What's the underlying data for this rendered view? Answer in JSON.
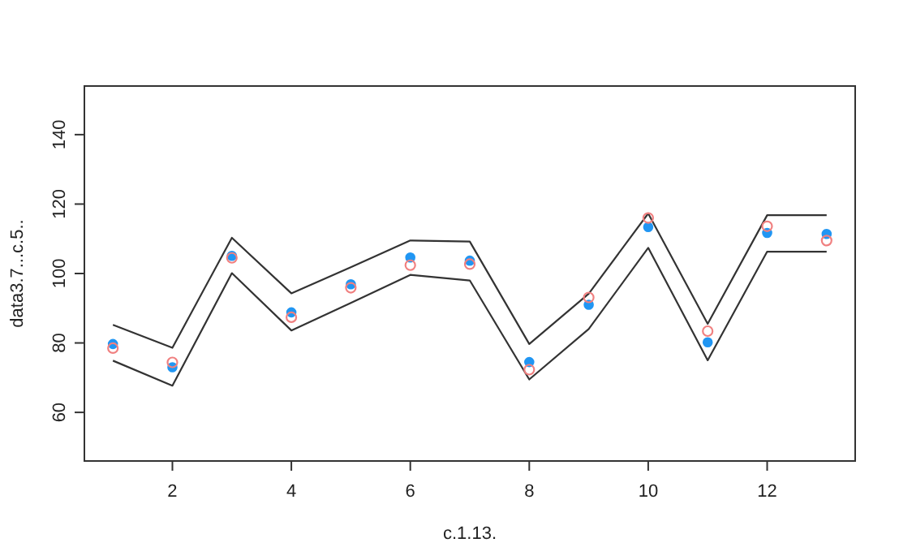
{
  "chart_data": {
    "type": "scatter",
    "xlabel": "c.1.13.",
    "ylabel": "data3.7...c.5..",
    "x": [
      1,
      2,
      3,
      4,
      5,
      6,
      7,
      8,
      9,
      10,
      11,
      12,
      13
    ],
    "xlim": [
      0.52,
      13.48
    ],
    "ylim": [
      46,
      154
    ],
    "xticks": [
      2,
      4,
      6,
      8,
      10,
      12
    ],
    "yticks": [
      60,
      80,
      100,
      120,
      140
    ],
    "grid": false,
    "marker": "circle",
    "series": [
      {
        "type": "line",
        "color": "#333333",
        "marker": "none",
        "line_style": "solid",
        "values": [
          85.2,
          78.6,
          110.3,
          94.3,
          101.8,
          109.5,
          109.2,
          79.7,
          94.2,
          117.3,
          85.5,
          116.8,
          116.8
        ]
      },
      {
        "type": "line",
        "color": "#333333",
        "marker": "none",
        "line_style": "solid",
        "values": [
          74.9,
          67.7,
          100.1,
          83.6,
          91.5,
          99.6,
          98.0,
          69.5,
          84.0,
          107.4,
          75.0,
          106.3,
          106.3
        ]
      },
      {
        "color": "#2196f3",
        "values": [
          79.7,
          73.0,
          105.1,
          88.8,
          96.9,
          104.6,
          103.7,
          74.5,
          91.0,
          113.4,
          80.2,
          111.7,
          111.4
        ]
      },
      {
        "color": "#f08080",
        "values": [
          78.5,
          74.4,
          104.5,
          87.4,
          95.9,
          102.4,
          102.7,
          72.3,
          93.1,
          116.0,
          83.4,
          113.6,
          109.5
        ]
      }
    ]
  }
}
